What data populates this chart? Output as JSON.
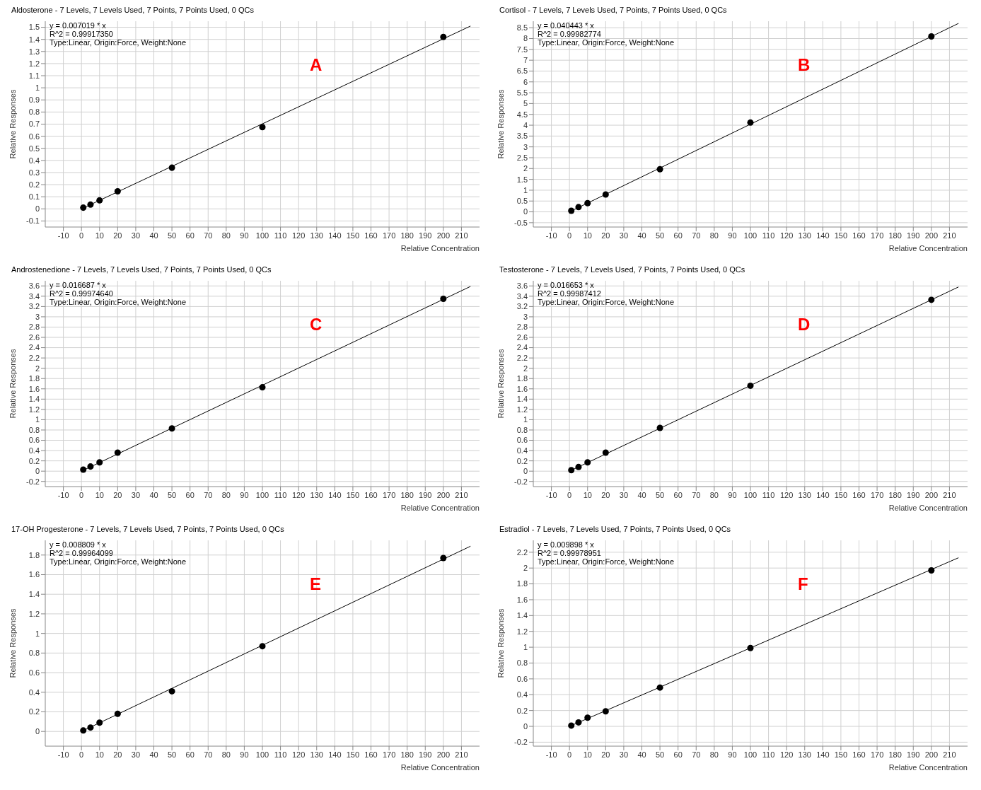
{
  "chart_data": [
    {
      "type": "scatter",
      "title": "Aldosterone - 7 Levels, 7 Levels Used, 7 Points, 7 Points Used, 0 QCs",
      "xlabel": "Relative Concentration",
      "ylabel": "Relative Responses",
      "annotations": [
        "y = 0.007019 * x",
        "R^2 = 0.99917350",
        "Type:Linear, Origin:Force, Weight:None",
        "A"
      ],
      "xlim": [
        -20,
        220
      ],
      "xticks": [
        -10,
        0,
        10,
        20,
        30,
        40,
        50,
        60,
        70,
        80,
        90,
        100,
        110,
        120,
        130,
        140,
        150,
        160,
        170,
        180,
        190,
        200,
        210
      ],
      "ylim": [
        -0.15,
        1.55
      ],
      "yticks": [
        -0.1,
        0,
        0.1,
        0.2,
        0.3,
        0.4,
        0.5,
        0.6,
        0.7,
        0.8,
        0.9,
        1,
        1.1,
        1.2,
        1.3,
        1.4,
        1.5
      ],
      "grid": true,
      "legend": false,
      "series": [
        {
          "color": "#000000",
          "marker": "circle",
          "x": [
            1,
            5,
            10,
            20,
            50,
            100,
            200
          ],
          "values": [
            0.01,
            0.035,
            0.07,
            0.145,
            0.34,
            0.675,
            1.42
          ]
        },
        {
          "type": "line",
          "marker": "none",
          "color": "#000000",
          "x": [
            0,
            215
          ],
          "values": [
            0,
            1.51
          ]
        }
      ]
    },
    {
      "type": "scatter",
      "title": "Cortisol - 7 Levels, 7 Levels Used, 7 Points, 7 Points Used, 0 QCs",
      "xlabel": "Relative Concentration",
      "ylabel": "Relative Responses",
      "annotations": [
        "y = 0.040443 * x",
        "R^2 = 0.99982774",
        "Type:Linear, Origin:Force, Weight:None",
        "B"
      ],
      "xlim": [
        -20,
        220
      ],
      "xticks": [
        -10,
        0,
        10,
        20,
        30,
        40,
        50,
        60,
        70,
        80,
        90,
        100,
        110,
        120,
        130,
        140,
        150,
        160,
        170,
        180,
        190,
        200,
        210
      ],
      "ylim": [
        -0.7,
        8.8
      ],
      "yticks": [
        -0.5,
        0,
        0.5,
        1,
        1.5,
        2,
        2.5,
        3,
        3.5,
        4,
        4.5,
        5,
        5.5,
        6,
        6.5,
        7,
        7.5,
        8,
        8.5
      ],
      "grid": true,
      "legend": false,
      "series": [
        {
          "color": "#000000",
          "marker": "circle",
          "x": [
            1,
            5,
            10,
            20,
            50,
            100,
            200
          ],
          "values": [
            0.05,
            0.22,
            0.4,
            0.8,
            1.97,
            4.12,
            8.1
          ]
        },
        {
          "type": "line",
          "marker": "none",
          "color": "#000000",
          "x": [
            0,
            215
          ],
          "values": [
            0,
            8.7
          ]
        }
      ]
    },
    {
      "type": "scatter",
      "title": "Androstenedione - 7 Levels, 7 Levels Used, 7 Points, 7 Points Used, 0 QCs",
      "xlabel": "Relative Concentration",
      "ylabel": "Relative Responses",
      "annotations": [
        "y = 0.016687 * x",
        "R^2 = 0.99974640",
        "Type:Linear, Origin:Force, Weight:None",
        "C"
      ],
      "xlim": [
        -20,
        220
      ],
      "xticks": [
        -10,
        0,
        10,
        20,
        30,
        40,
        50,
        60,
        70,
        80,
        90,
        100,
        110,
        120,
        130,
        140,
        150,
        160,
        170,
        180,
        190,
        200,
        210
      ],
      "ylim": [
        -0.3,
        3.7
      ],
      "yticks": [
        -0.2,
        0,
        0.2,
        0.4,
        0.6,
        0.8,
        1,
        1.2,
        1.4,
        1.6,
        1.8,
        2,
        2.2,
        2.4,
        2.6,
        2.8,
        3,
        3.2,
        3.4,
        3.6
      ],
      "grid": true,
      "legend": false,
      "series": [
        {
          "color": "#000000",
          "marker": "circle",
          "x": [
            1,
            5,
            10,
            20,
            50,
            100,
            200
          ],
          "values": [
            0.03,
            0.09,
            0.17,
            0.36,
            0.83,
            1.63,
            3.35
          ]
        },
        {
          "type": "line",
          "marker": "none",
          "color": "#000000",
          "x": [
            0,
            215
          ],
          "values": [
            0,
            3.59
          ]
        }
      ]
    },
    {
      "type": "scatter",
      "title": "Testosterone - 7 Levels, 7 Levels Used, 7 Points, 7 Points Used, 0 QCs",
      "xlabel": "Relative Concentration",
      "ylabel": "Relative Responses",
      "annotations": [
        "y = 0.016653 * x",
        "R^2 = 0.99987412",
        "Type:Linear, Origin:Force, Weight:None",
        "D"
      ],
      "xlim": [
        -20,
        220
      ],
      "xticks": [
        -10,
        0,
        10,
        20,
        30,
        40,
        50,
        60,
        70,
        80,
        90,
        100,
        110,
        120,
        130,
        140,
        150,
        160,
        170,
        180,
        190,
        200,
        210
      ],
      "ylim": [
        -0.3,
        3.7
      ],
      "yticks": [
        -0.2,
        0,
        0.2,
        0.4,
        0.6,
        0.8,
        1,
        1.2,
        1.4,
        1.6,
        1.8,
        2,
        2.2,
        2.4,
        2.6,
        2.8,
        3,
        3.2,
        3.4,
        3.6
      ],
      "grid": true,
      "legend": false,
      "series": [
        {
          "color": "#000000",
          "marker": "circle",
          "x": [
            1,
            5,
            10,
            20,
            50,
            100,
            200
          ],
          "values": [
            0.02,
            0.08,
            0.17,
            0.36,
            0.84,
            1.66,
            3.33
          ]
        },
        {
          "type": "line",
          "marker": "none",
          "color": "#000000",
          "x": [
            0,
            215
          ],
          "values": [
            0,
            3.58
          ]
        }
      ]
    },
    {
      "type": "scatter",
      "title": "17-OH Progesterone - 7 Levels, 7 Levels Used, 7 Points, 7 Points Used, 0 QCs",
      "xlabel": "Relative Concentration",
      "ylabel": "Relative Responses",
      "annotations": [
        "y = 0.008809 * x",
        "R^2 = 0.99964099",
        "Type:Linear, Origin:Force, Weight:None",
        "E"
      ],
      "xlim": [
        -20,
        220
      ],
      "xticks": [
        -10,
        0,
        10,
        20,
        30,
        40,
        50,
        60,
        70,
        80,
        90,
        100,
        110,
        120,
        130,
        140,
        150,
        160,
        170,
        180,
        190,
        200,
        210
      ],
      "ylim": [
        -0.15,
        1.95
      ],
      "yticks": [
        0,
        0.2,
        0.4,
        0.6,
        0.8,
        1,
        1.2,
        1.4,
        1.6,
        1.8
      ],
      "grid": true,
      "legend": false,
      "series": [
        {
          "color": "#000000",
          "marker": "circle",
          "x": [
            1,
            5,
            10,
            20,
            50,
            100,
            200
          ],
          "values": [
            0.01,
            0.04,
            0.09,
            0.18,
            0.41,
            0.87,
            1.77
          ]
        },
        {
          "type": "line",
          "marker": "none",
          "color": "#000000",
          "x": [
            0,
            215
          ],
          "values": [
            0,
            1.89
          ]
        }
      ]
    },
    {
      "type": "scatter",
      "title": "Estradiol - 7 Levels, 7 Levels Used, 7 Points, 7 Points Used, 0 QCs",
      "xlabel": "Relative Concentration",
      "ylabel": "Relative Responses",
      "annotations": [
        "y = 0.009898 * x",
        "R^2 = 0.99978951",
        "Type:Linear, Origin:Force, Weight:None",
        "F"
      ],
      "xlim": [
        -20,
        220
      ],
      "xticks": [
        -10,
        0,
        10,
        20,
        30,
        40,
        50,
        60,
        70,
        80,
        90,
        100,
        110,
        120,
        130,
        140,
        150,
        160,
        170,
        180,
        190,
        200,
        210
      ],
      "ylim": [
        -0.25,
        2.35
      ],
      "yticks": [
        -0.2,
        0,
        0.2,
        0.4,
        0.6,
        0.8,
        1,
        1.2,
        1.4,
        1.6,
        1.8,
        2,
        2.2
      ],
      "grid": true,
      "legend": false,
      "series": [
        {
          "color": "#000000",
          "marker": "circle",
          "x": [
            1,
            5,
            10,
            20,
            50,
            100,
            200
          ],
          "values": [
            0.01,
            0.05,
            0.11,
            0.19,
            0.49,
            0.99,
            1.97
          ]
        },
        {
          "type": "line",
          "marker": "none",
          "color": "#000000",
          "x": [
            0,
            215
          ],
          "values": [
            0,
            2.13
          ]
        }
      ]
    }
  ]
}
